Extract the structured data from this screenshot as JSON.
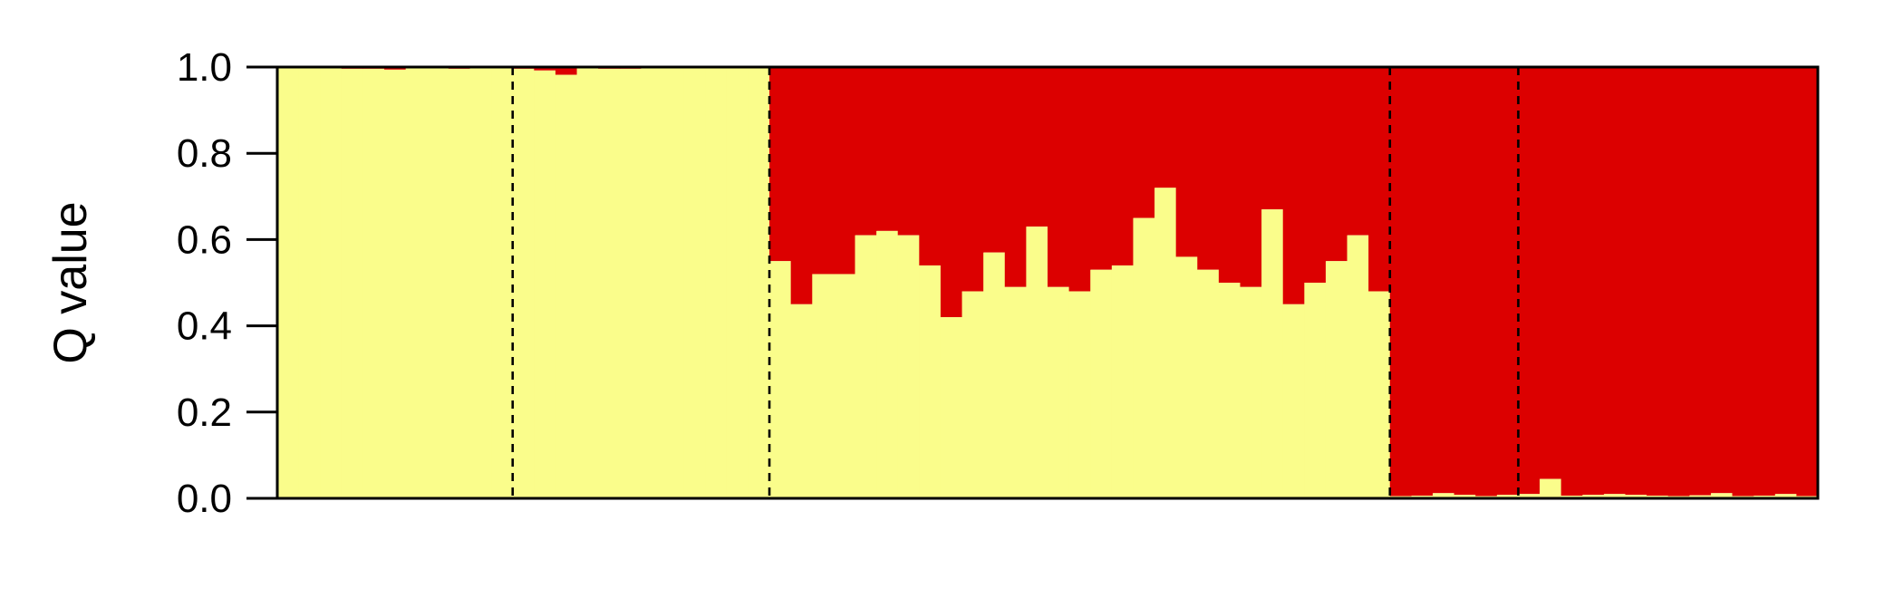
{
  "chart_data": {
    "type": "bar",
    "subtype": "stacked-admixture",
    "ylabel": "Q value",
    "xlabel": "",
    "title": "",
    "ylim": [
      0,
      1
    ],
    "yticks": [
      0.0,
      0.2,
      0.4,
      0.6,
      0.8,
      1.0
    ],
    "ytick_labels": [
      "0.0",
      "0.2",
      "0.4",
      "0.6",
      "0.8",
      "1.0"
    ],
    "grid": false,
    "legend": "none",
    "colors": {
      "lower": "#FAFD8B",
      "upper": "#DC0000"
    },
    "group_boundaries_after_index": [
      10,
      22,
      51,
      57
    ],
    "series": [
      {
        "name": "",
        "color": "#FAFD8B",
        "values": [
          0.998,
          0.998,
          0.997,
          0.996,
          0.996,
          0.994,
          0.997,
          0.997,
          0.996,
          0.997,
          0.998,
          0.996,
          0.992,
          0.982,
          0.997,
          0.996,
          0.996,
          0.998,
          0.997,
          0.998,
          0.998,
          0.998,
          0.997,
          0.55,
          0.45,
          0.52,
          0.52,
          0.61,
          0.62,
          0.61,
          0.54,
          0.42,
          0.48,
          0.57,
          0.49,
          0.63,
          0.49,
          0.48,
          0.53,
          0.54,
          0.65,
          0.72,
          0.56,
          0.53,
          0.5,
          0.49,
          0.67,
          0.45,
          0.5,
          0.55,
          0.61,
          0.48,
          0.005,
          0.006,
          0.012,
          0.008,
          0.005,
          0.008,
          0.01,
          0.045,
          0.006,
          0.008,
          0.01,
          0.008,
          0.006,
          0.005,
          0.007,
          0.012,
          0.005,
          0.006,
          0.01,
          0.005
        ]
      }
    ]
  }
}
